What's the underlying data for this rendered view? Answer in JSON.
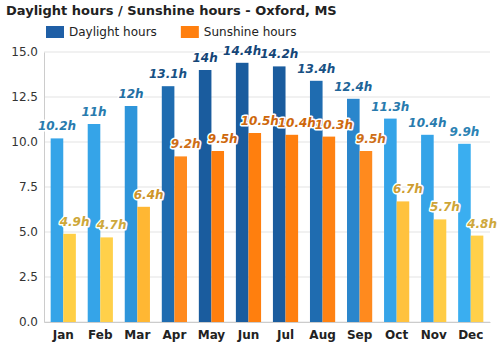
{
  "chart_data": {
    "type": "bar",
    "title": "Daylight hours / Sunshine hours - Oxford, MS",
    "categories": [
      "Jan",
      "Feb",
      "Mar",
      "Apr",
      "May",
      "Jun",
      "Jul",
      "Aug",
      "Sep",
      "Oct",
      "Nov",
      "Dec"
    ],
    "series": [
      {
        "name": "Daylight hours",
        "color": "#1f5fa6",
        "colors": [
          "#35a4e8",
          "#35a4e8",
          "#2e95da",
          "#1f6cb0",
          "#1a5c9e",
          "#1a5c9e",
          "#1a5c9e",
          "#1f6cb0",
          "#2a86cc",
          "#35a4e8",
          "#35a4e8",
          "#3aaef0"
        ],
        "values": [
          10.2,
          11,
          12,
          13.1,
          14,
          14.4,
          14.2,
          13.4,
          12.4,
          11.3,
          10.4,
          9.9
        ],
        "value_labels": [
          "10.2h",
          "11h",
          "12h",
          "13.1h",
          "14h",
          "14.4h",
          "14.2h",
          "13.4h",
          "12.4h",
          "11.3h",
          "10.4h",
          "9.9h"
        ]
      },
      {
        "name": "Sunshine hours",
        "color": "#ff7f0e",
        "colors": [
          "#ffcf45",
          "#ffd04a",
          "#ffb733",
          "#ff8a1e",
          "#ff7f0e",
          "#ff7f0e",
          "#ff7f0e",
          "#ff8212",
          "#ff8a1e",
          "#ffc23e",
          "#ffcc45",
          "#ffd04a"
        ],
        "values": [
          4.9,
          4.7,
          6.4,
          9.2,
          9.5,
          10.5,
          10.4,
          10.3,
          9.5,
          6.7,
          5.7,
          4.8
        ],
        "value_labels": [
          "4.9h",
          "4.7h",
          "6.4h",
          "9.2h",
          "9.5h",
          "10.5h",
          "10.4h",
          "10.3h",
          "9.5h",
          "6.7h",
          "5.7h",
          "4.8h"
        ]
      }
    ],
    "ylim": [
      0,
      15
    ],
    "yticks": [
      {
        "value": 0,
        "label": "0.0"
      },
      {
        "value": 2.5,
        "label": "2.5"
      },
      {
        "value": 5,
        "label": "5.0"
      },
      {
        "value": 7.5,
        "label": "7.5"
      },
      {
        "value": 10,
        "label": "10.0"
      },
      {
        "value": 12.5,
        "label": "12.5"
      },
      {
        "value": 15,
        "label": "15.0"
      }
    ],
    "grid": true,
    "legend": "top",
    "data_labels": true
  }
}
